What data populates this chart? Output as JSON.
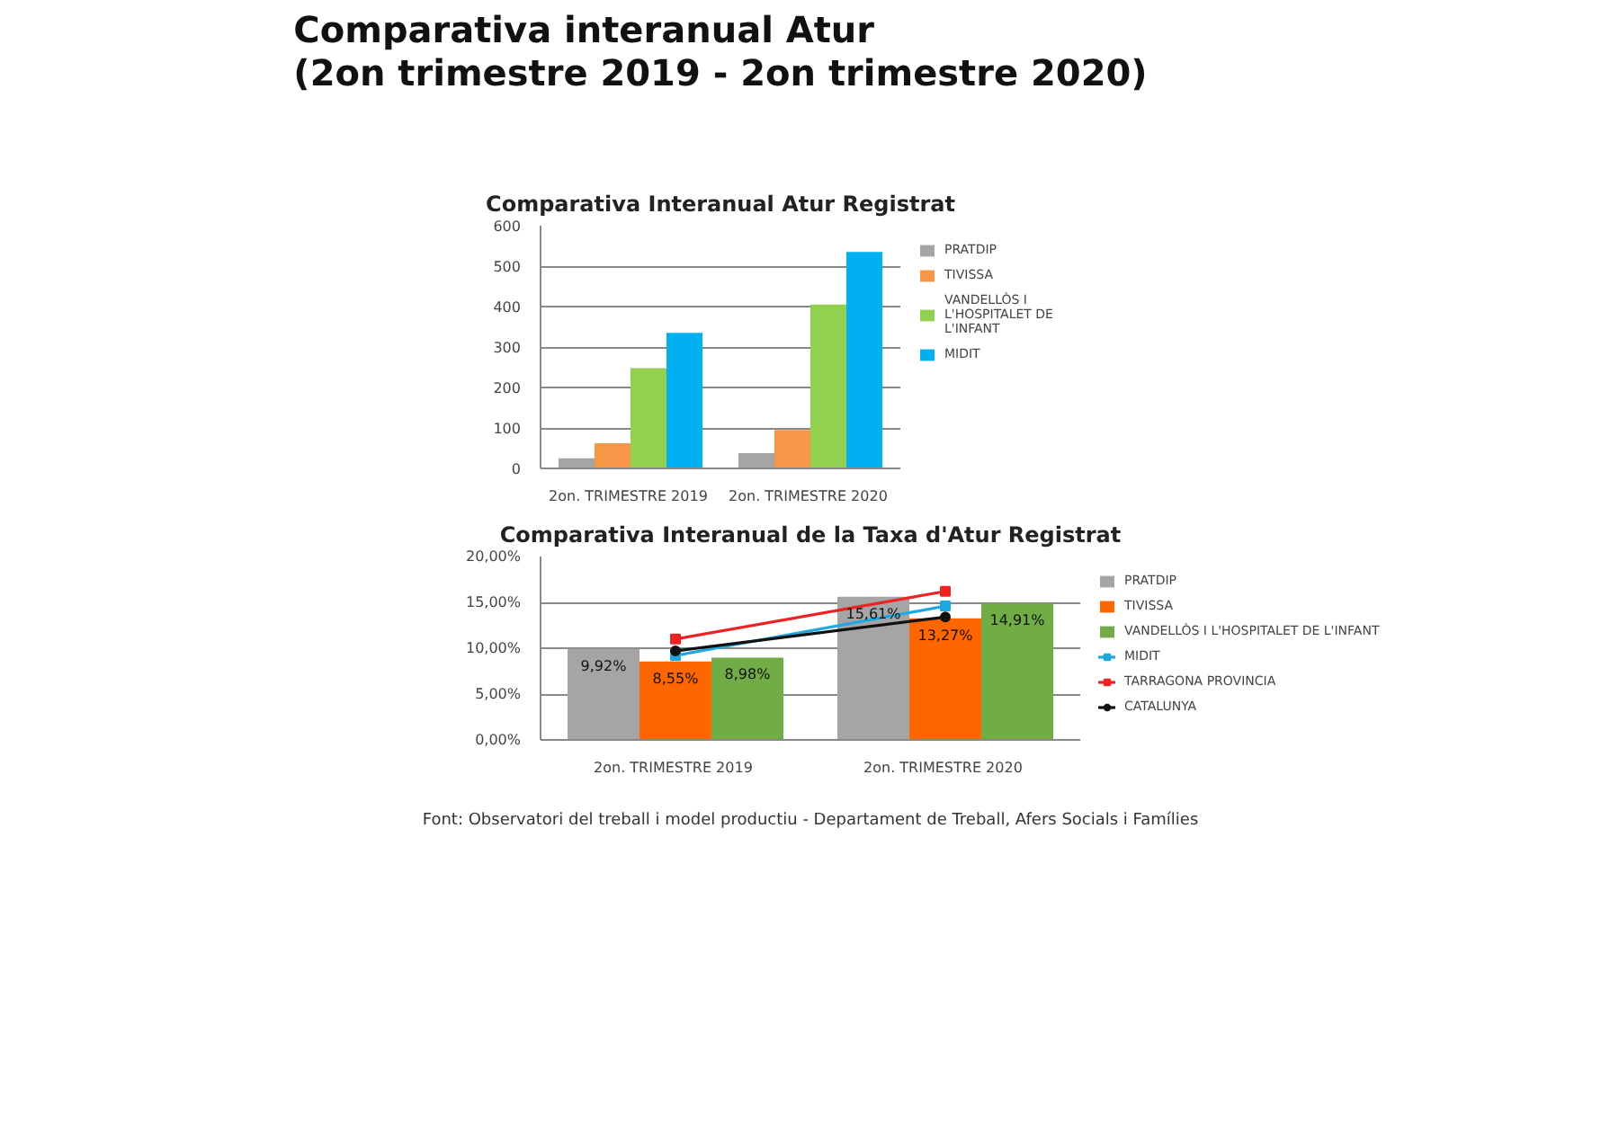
{
  "chart_data": [
    {
      "type": "other",
      "title": "Comparativa interanual Atur\n(2on trimestre 2019 - 2on trimestre 2020)",
      "annotations": [
        "Font: Observatori del treball i model productiu - Departament de Treball, Afers Socials i Famílies"
      ]
    },
    {
      "type": "bar",
      "title": "Comparativa Interanual Atur Registrat",
      "categories": [
        "2on. TRIMESTRE  2019",
        "2on. TRIMESTRE  2020"
      ],
      "series": [
        {
          "name": "PRATDIP",
          "color": "#a5a5a5",
          "values": [
            25,
            38
          ]
        },
        {
          "name": "TIVISSA",
          "color": "#f79646",
          "values": [
            62,
            95
          ]
        },
        {
          "name": "VANDELLÒS I L'HOSPITALET DE L'INFANT",
          "color": "#92d050",
          "values": [
            248,
            405
          ]
        },
        {
          "name": "MIDIT",
          "color": "#00b0f0",
          "values": [
            335,
            535
          ]
        }
      ],
      "ylim": [
        0,
        600
      ],
      "yticks": [
        0,
        100,
        200,
        300,
        400,
        500,
        600
      ],
      "grid": "y",
      "legend": "right"
    },
    {
      "type": "bar",
      "title": "Comparativa Interanual de la Taxa d'Atur Registrat",
      "categories": [
        "2on. TRIMESTRE  2019",
        "2on. TRIMESTRE  2020"
      ],
      "series": [
        {
          "name": "PRATDIP",
          "color": "#a5a5a5",
          "values": [
            9.92,
            15.61
          ],
          "value_labels": [
            "9,92%",
            "15,61%"
          ]
        },
        {
          "name": "TIVISSA",
          "color": "#ff6600",
          "values": [
            8.55,
            13.27
          ],
          "value_labels": [
            "8,55%",
            "13,27%"
          ]
        },
        {
          "name": "VANDELLÒS I L'HOSPITALET DE L'INFANT",
          "color": "#70ad47",
          "values": [
            8.98,
            14.91
          ],
          "value_labels": [
            "8,98%",
            "14,91%"
          ]
        },
        {
          "name": "MIDIT",
          "type": "line",
          "color": "#1fa8e0",
          "marker": "square",
          "values": [
            9.2,
            14.6
          ]
        },
        {
          "name": "TARRAGONA PROVINCIA",
          "type": "line",
          "color": "#ee2222",
          "marker": "square",
          "values": [
            11.0,
            16.2
          ]
        },
        {
          "name": "CATALUNYA",
          "type": "line",
          "color": "#111111",
          "marker": "circle",
          "values": [
            9.7,
            13.4
          ]
        }
      ],
      "ylim": [
        0,
        20
      ],
      "yticks": [
        {
          "value": 0,
          "label": "0,00%"
        },
        {
          "value": 5,
          "label": "5,00%"
        },
        {
          "value": 10,
          "label": "10,00%"
        },
        {
          "value": 15,
          "label": "15,00%"
        },
        {
          "value": 20,
          "label": "20,00%"
        }
      ],
      "grid": "y",
      "legend": "right"
    }
  ]
}
